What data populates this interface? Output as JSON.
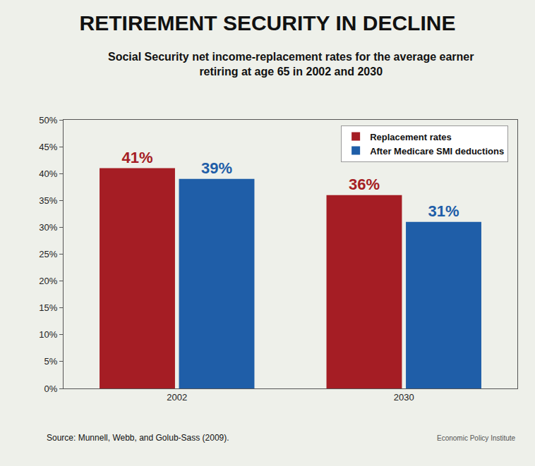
{
  "chart_data": {
    "type": "bar",
    "title": "RETIREMENT SECURITY IN DECLINE",
    "subtitle": "Social Security net income-replacement rates for the average earner retiring at age 65 in 2002 and 2030",
    "categories": [
      "2002",
      "2030"
    ],
    "series": [
      {
        "name": "Replacement rates",
        "color": "#a51d24",
        "values": [
          41,
          36
        ],
        "value_labels": [
          "41%",
          "36%"
        ]
      },
      {
        "name": "After Medicare SMI deductions",
        "color": "#1f5ea8",
        "values": [
          39,
          31
        ],
        "value_labels": [
          "39%",
          "31%"
        ]
      }
    ],
    "ylim": [
      0,
      50
    ],
    "yticks": [
      {
        "value": 0,
        "label": "0%"
      },
      {
        "value": 5,
        "label": "5%"
      },
      {
        "value": 10,
        "label": "10%"
      },
      {
        "value": 15,
        "label": "15%"
      },
      {
        "value": 20,
        "label": "20%"
      },
      {
        "value": 25,
        "label": "25%"
      },
      {
        "value": 30,
        "label": "30%"
      },
      {
        "value": 35,
        "label": "35%"
      },
      {
        "value": 40,
        "label": "40%"
      },
      {
        "value": 45,
        "label": "45%"
      },
      {
        "value": 50,
        "label": "50%"
      }
    ],
    "grid": false,
    "legend": "top right",
    "data_labels": true,
    "source": "Source: Munnell, Webb, and Golub-Sass (2009).",
    "credit": "Economic Policy Institute"
  }
}
